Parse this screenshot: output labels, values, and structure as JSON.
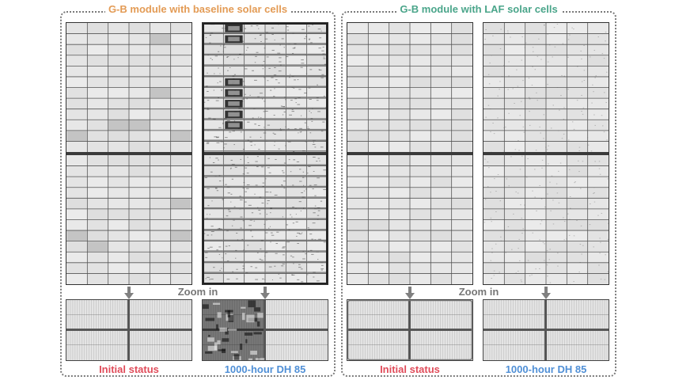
{
  "colors": {
    "baseline_title": "#e39b55",
    "laf_title": "#4aa58a",
    "initial_caption": "#e04c5a",
    "dh_caption": "#4f8fd6",
    "zoom_text": "#777777",
    "arrow": "#808080"
  },
  "panels": [
    {
      "title": "G-B module with baseline solar cells",
      "zoom_label": "Zoom in",
      "captions": [
        "Initial status",
        "1000-hour DH 85"
      ]
    },
    {
      "title": "G-B module with LAF solar cells",
      "zoom_label": "Zoom in",
      "captions": [
        "Initial status",
        "1000-hour DH 85"
      ]
    }
  ]
}
